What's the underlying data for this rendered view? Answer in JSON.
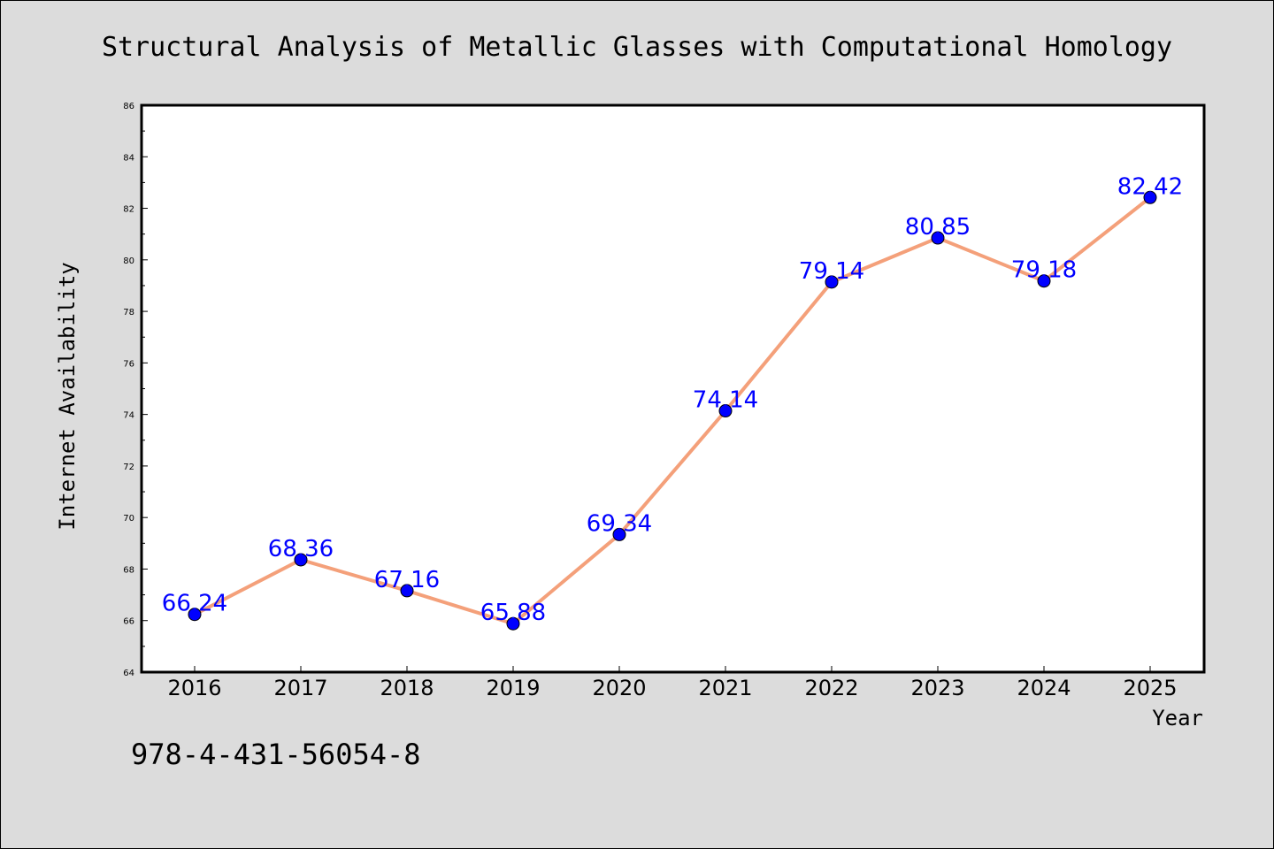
{
  "chart_data": {
    "type": "line",
    "title": "Structural Analysis of Metallic Glasses with Computational Homology",
    "xlabel": "Year",
    "ylabel": "Internet Availability",
    "categories": [
      "2016",
      "2017",
      "2018",
      "2019",
      "2020",
      "2021",
      "2022",
      "2023",
      "2024",
      "2025"
    ],
    "series": [
      {
        "values": [
          66.24,
          68.36,
          67.16,
          65.88,
          69.34,
          74.14,
          79.14,
          80.85,
          79.18,
          82.42
        ],
        "labels": [
          "66.24",
          "68.36",
          "67.16",
          "65.88",
          "69.34",
          "74.14",
          "79.14",
          "80.85",
          "79.18",
          "82.42"
        ],
        "line_color": "#f4a07a",
        "marker_color": "#0000ff"
      }
    ],
    "ylim": [
      64,
      86
    ],
    "yticks": [
      "64",
      "66",
      "68",
      "70",
      "72",
      "74",
      "76",
      "78",
      "80",
      "82",
      "84",
      "86"
    ],
    "grid": false,
    "legend": "none"
  },
  "annotation": {
    "isbn": "978-4-431-56054-8"
  },
  "colors": {
    "background": "#dcdcdc",
    "plot_background": "#ffffff",
    "line": "#f4a07a",
    "marker": "#0000ff",
    "data_label": "#0000ff"
  }
}
